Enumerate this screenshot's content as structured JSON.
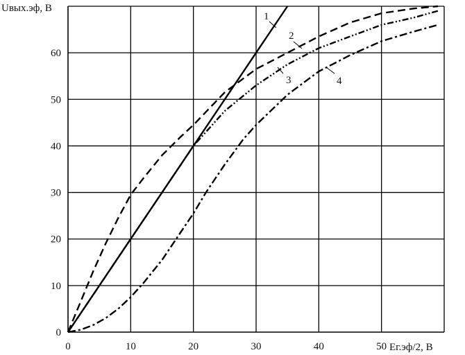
{
  "chart_data": {
    "type": "line",
    "title": "",
    "xlabel": "Ег.эф/2, В",
    "ylabel": "Uвых.эф, В",
    "xlim": [
      0,
      60
    ],
    "ylim": [
      0,
      70
    ],
    "x_ticks": [
      0,
      10,
      20,
      30,
      40,
      50
    ],
    "y_ticks": [
      0,
      10,
      20,
      30,
      40,
      50,
      60
    ],
    "grid": true,
    "legend": "none",
    "series": [
      {
        "name": "1",
        "style": "solid",
        "x": [
          0,
          10,
          20,
          30,
          35
        ],
        "y": [
          0,
          20,
          40,
          60,
          70
        ]
      },
      {
        "name": "2",
        "style": "dashed",
        "x": [
          0,
          2,
          4,
          6,
          8,
          10,
          12,
          15,
          18,
          20,
          25,
          30,
          35,
          40,
          45,
          50,
          55,
          59
        ],
        "y": [
          0,
          6.5,
          13,
          19,
          24.5,
          29.5,
          33,
          38,
          42,
          44.5,
          51.5,
          56.5,
          60,
          63.5,
          66.5,
          68.5,
          69.5,
          70
        ]
      },
      {
        "name": "3",
        "style": "dash-dot-dot",
        "x": [
          0,
          5,
          10,
          15,
          20,
          25,
          30,
          35,
          40,
          45,
          50,
          55,
          59
        ],
        "y": [
          0,
          10,
          20,
          30,
          40,
          47.5,
          53,
          57.5,
          61,
          63.5,
          66,
          67.5,
          69
        ]
      },
      {
        "name": "4",
        "style": "dash-dot",
        "x": [
          0,
          2,
          4,
          6,
          8,
          10,
          12,
          15,
          18,
          20,
          22,
          25,
          28,
          30,
          35,
          40,
          45,
          50,
          55,
          59
        ],
        "y": [
          0,
          0.5,
          1.5,
          3,
          5,
          7.5,
          10.5,
          15.5,
          21.5,
          25.5,
          30,
          36,
          41.5,
          44.5,
          51,
          56,
          59.5,
          62.5,
          64.5,
          66
        ]
      }
    ],
    "curve_labels": [
      {
        "text": "1",
        "series": "1"
      },
      {
        "text": "2",
        "series": "2"
      },
      {
        "text": "3",
        "series": "3"
      },
      {
        "text": "4",
        "series": "4"
      }
    ]
  }
}
